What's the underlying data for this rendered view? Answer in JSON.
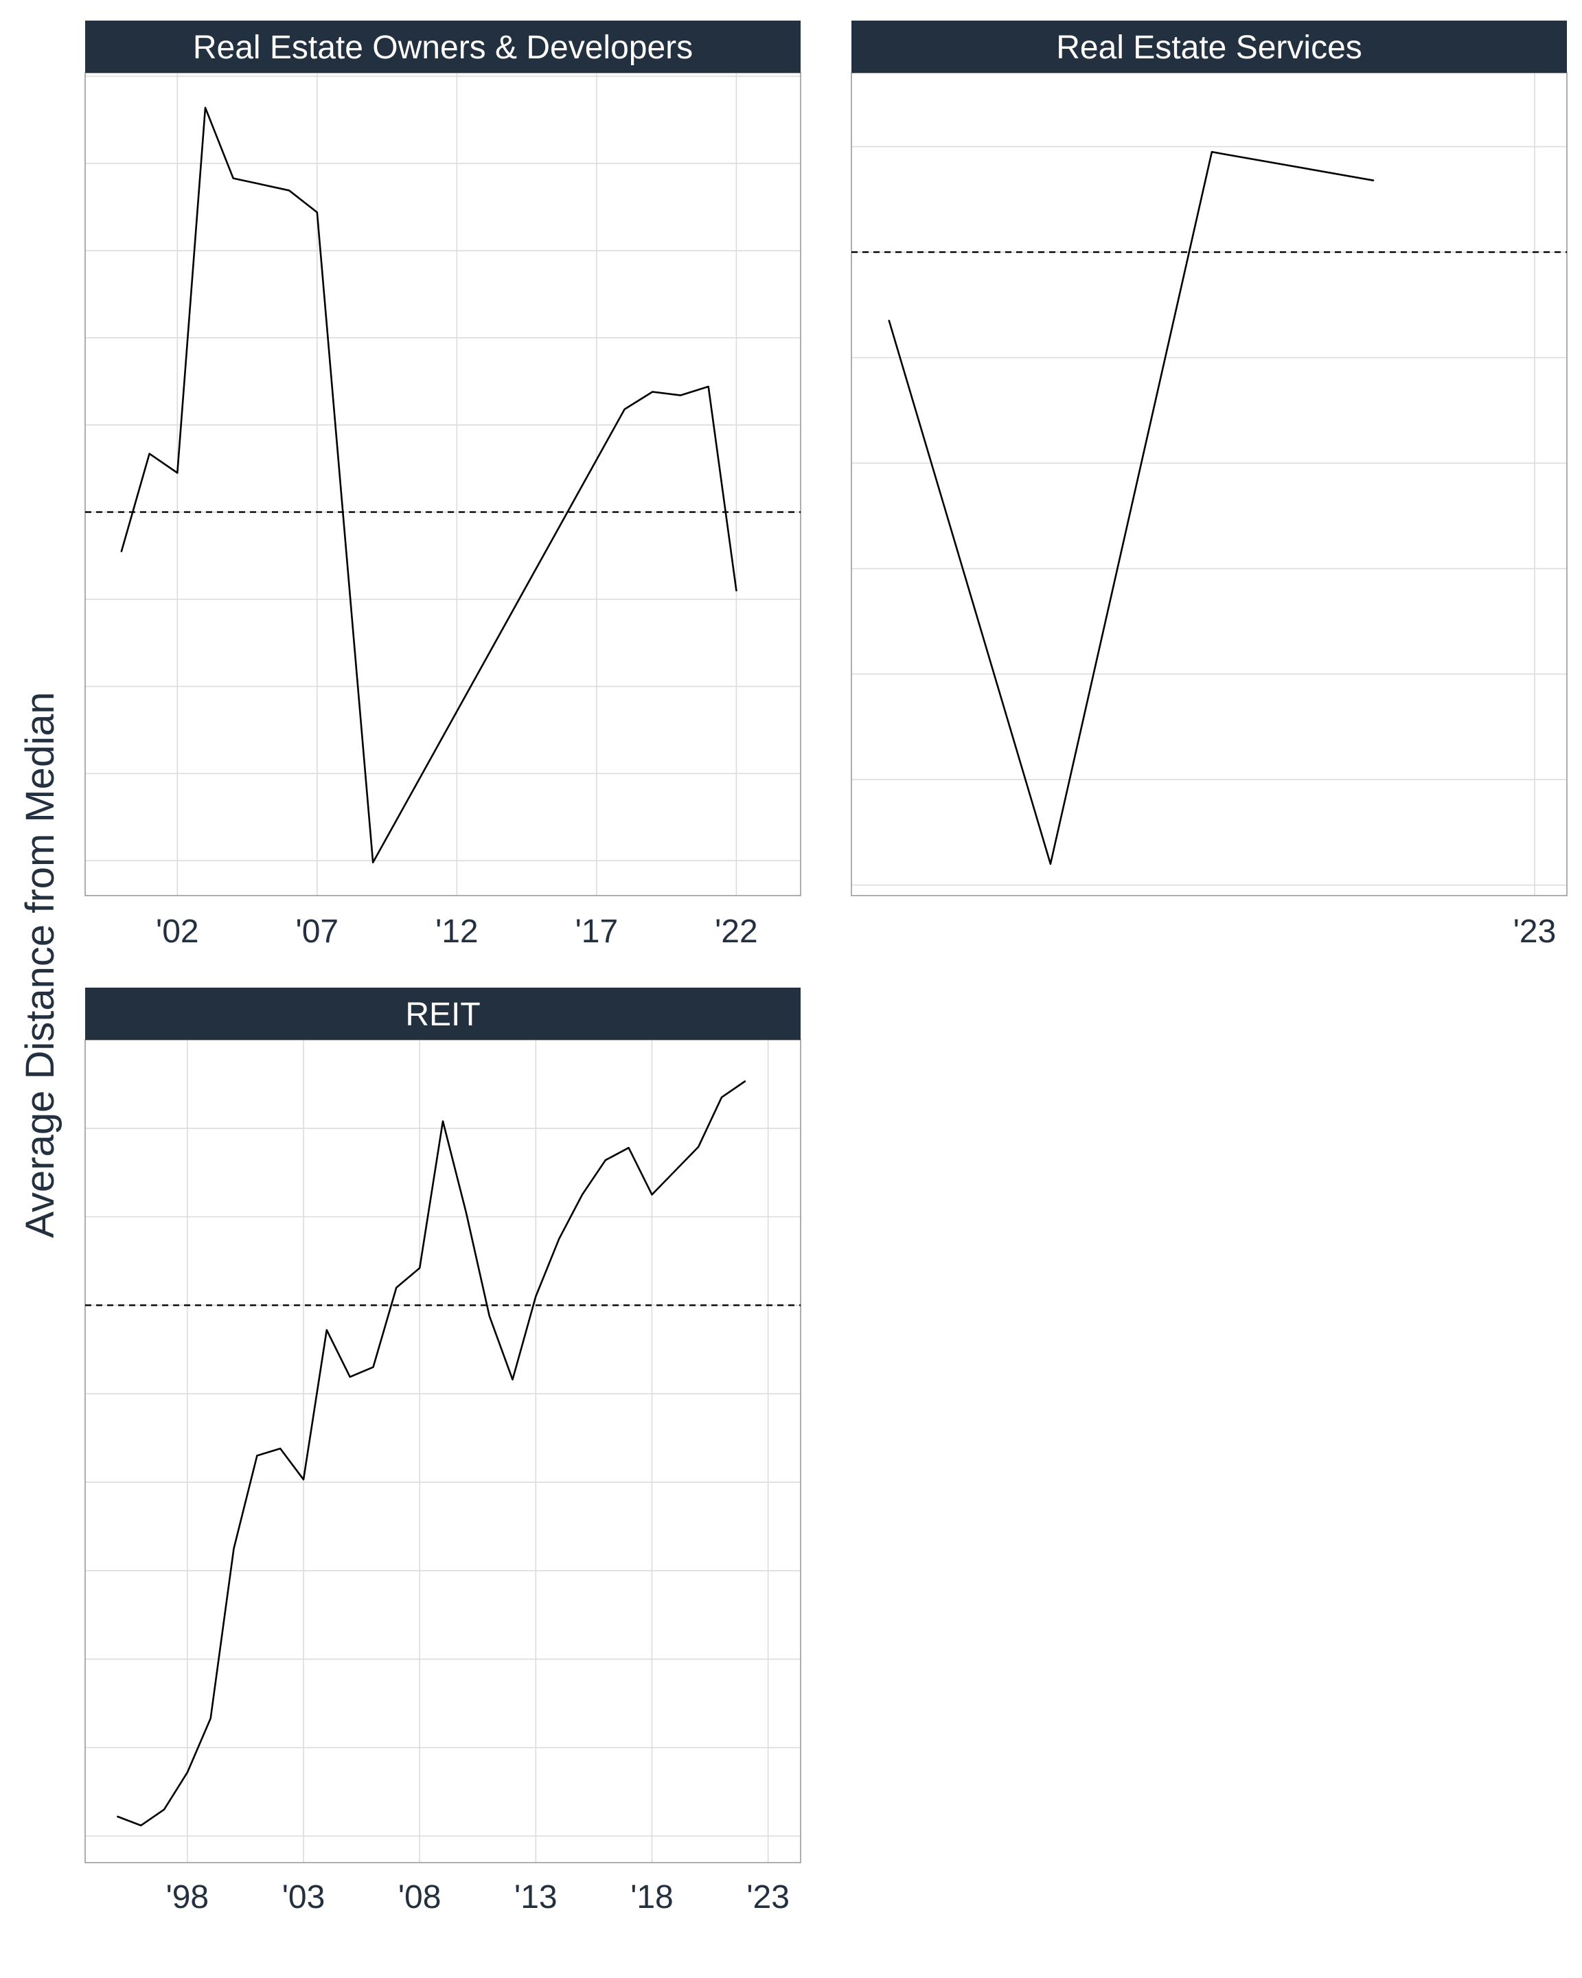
{
  "y_axis_label": "Average Distance from Median",
  "colors": {
    "strip_bg": "#233040",
    "strip_text": "#ffffff",
    "axis_text": "#233040",
    "grid": "#dcdcdc",
    "panel_border": "#9a9a9a",
    "line": "#000000",
    "reference_line": "#000000"
  },
  "chart_data": [
    {
      "type": "line",
      "title": "Real Estate Owners & Developers",
      "x_tick_labels": [
        "'02",
        "'07",
        "'12",
        "'17",
        "'22"
      ],
      "x_tick_values": [
        2002,
        2007,
        2012,
        2017,
        2022
      ],
      "xlim": [
        1998.7,
        2024.3
      ],
      "ylim": [
        0,
        9.44
      ],
      "y_gridlines": [
        0.4,
        1.4,
        2.4,
        3.4,
        4.4,
        5.4,
        6.4,
        7.4,
        8.4,
        9.4
      ],
      "reference_line_y": 4.4,
      "grid": true,
      "x": [
        2000,
        2001,
        2002,
        2003,
        2004,
        2005,
        2006,
        2007,
        2009,
        2018,
        2019,
        2020,
        2021,
        2022
      ],
      "y": [
        3.95,
        5.07,
        4.85,
        9.04,
        8.23,
        8.16,
        8.09,
        7.84,
        0.38,
        5.58,
        5.78,
        5.74,
        5.84,
        3.5
      ]
    },
    {
      "type": "line",
      "title": "Real Estate Services",
      "x_tick_labels": [
        "'23"
      ],
      "x_tick_values": [
        2023
      ],
      "xlim": [
        1997.6,
        2024.2
      ],
      "ylim": [
        0,
        7.8
      ],
      "y_gridlines": [
        0.1,
        1.1,
        2.1,
        3.1,
        4.1,
        5.1,
        6.1,
        7.1
      ],
      "reference_line_y": 6.1,
      "grid": true,
      "x": [
        1999,
        2005,
        2011,
        2017
      ],
      "y": [
        5.45,
        0.3,
        7.05,
        6.78
      ]
    },
    {
      "type": "line",
      "title": "REIT",
      "x_tick_labels": [
        "'98",
        "'03",
        "'08",
        "'13",
        "'18",
        "'23"
      ],
      "x_tick_values": [
        1998,
        2003,
        2008,
        2013,
        2018,
        2023
      ],
      "xlim": [
        1993.6,
        2024.4
      ],
      "ylim": [
        0,
        9.3
      ],
      "y_gridlines": [
        0.3,
        1.3,
        2.3,
        3.3,
        4.3,
        5.3,
        6.3,
        7.3,
        8.3
      ],
      "reference_line_y": 6.3,
      "grid": true,
      "x": [
        1995,
        1996,
        1997,
        1998,
        1999,
        2000,
        2001,
        2002,
        2003,
        2004,
        2005,
        2006,
        2007,
        2008,
        2009,
        2010,
        2011,
        2012,
        2013,
        2014,
        2015,
        2016,
        2017,
        2018,
        2019,
        2020,
        2021,
        2022
      ],
      "y": [
        0.52,
        0.42,
        0.6,
        1.02,
        1.63,
        3.55,
        4.6,
        4.68,
        4.33,
        6.02,
        5.49,
        5.6,
        6.5,
        6.72,
        8.38,
        7.35,
        6.18,
        5.46,
        6.4,
        7.05,
        7.55,
        7.94,
        8.08,
        7.55,
        7.82,
        8.09,
        8.65,
        8.83
      ]
    }
  ]
}
